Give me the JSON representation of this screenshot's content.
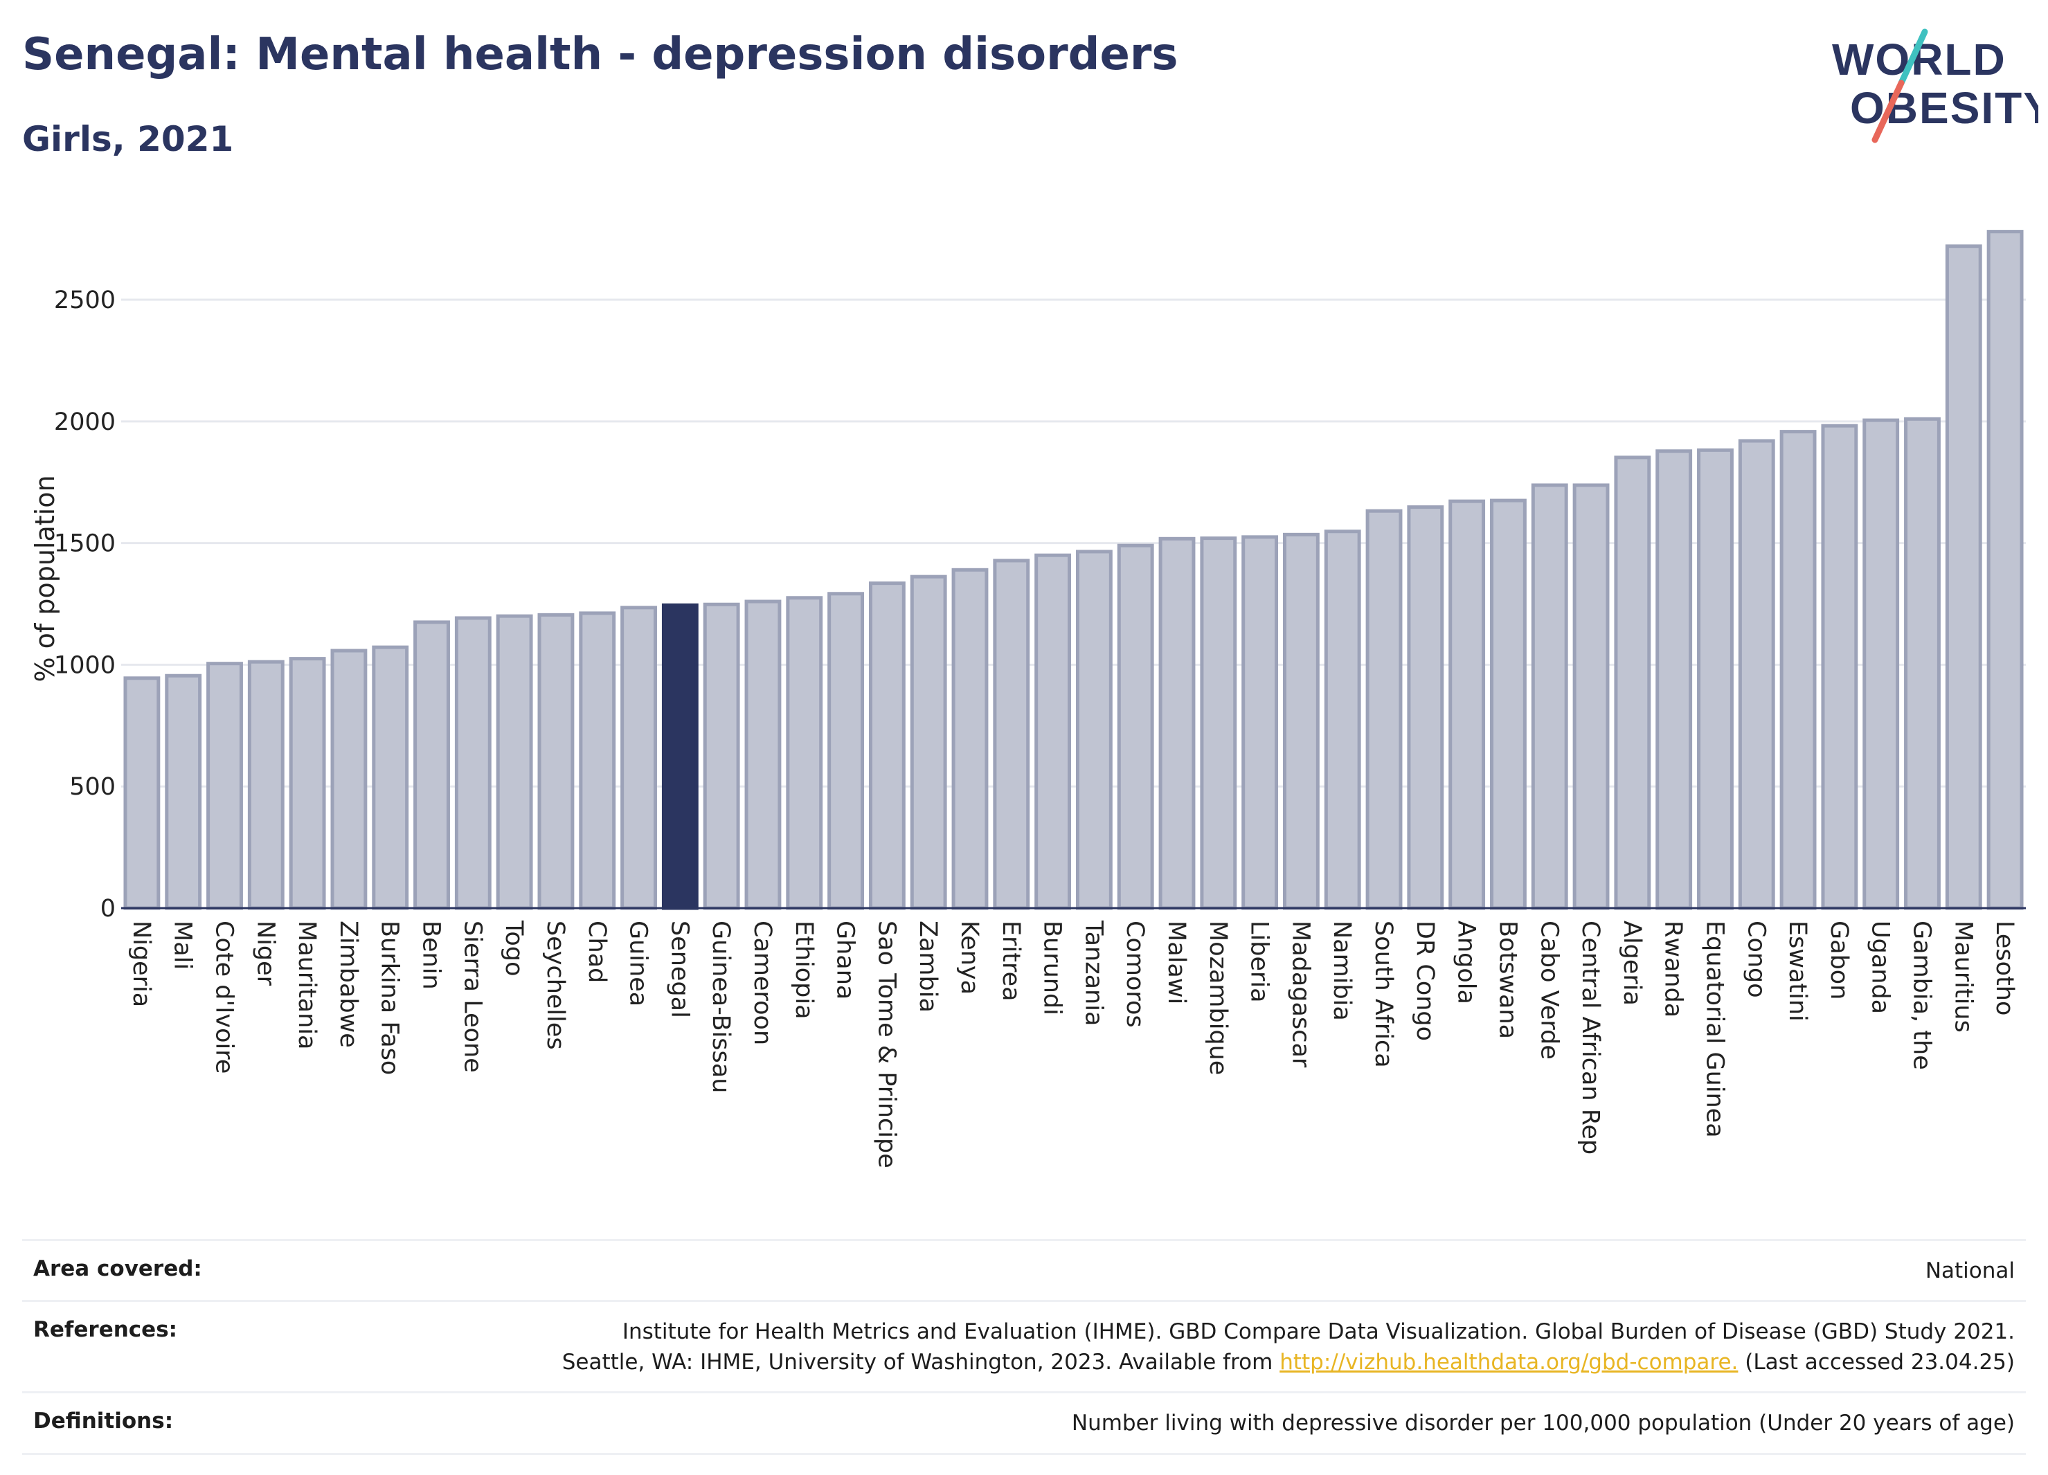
{
  "header": {
    "title": "Senegal: Mental health - depression disorders",
    "subtitle": "Girls, 2021"
  },
  "logo": {
    "line1": "WORLD",
    "line2": "OBESITY"
  },
  "chart_data": {
    "type": "bar",
    "ylabel": "% of population",
    "xlabel": "",
    "ylim": [
      0,
      2850
    ],
    "yticks": [
      0,
      500,
      1000,
      1500,
      2000,
      2500
    ],
    "grid": true,
    "highlight": "Senegal",
    "colors": {
      "bar": "#c0c4d2",
      "bar_edge": "#9ca2b8",
      "highlight": "#2b3560",
      "grid": "#e6e8ee",
      "axis": "#2b3560"
    },
    "categories": [
      "Nigeria",
      "Mali",
      "Cote d'Ivoire",
      "Niger",
      "Mauritania",
      "Zimbabwe",
      "Burkina Faso",
      "Benin",
      "Sierra Leone",
      "Togo",
      "Seychelles",
      "Chad",
      "Guinea",
      "Senegal",
      "Guinea-Bissau",
      "Cameroon",
      "Ethiopia",
      "Ghana",
      "Sao Tome & Principe",
      "Zambia",
      "Kenya",
      "Eritrea",
      "Burundi",
      "Tanzania",
      "Comoros",
      "Malawi",
      "Mozambique",
      "Liberia",
      "Madagascar",
      "Namibia",
      "South Africa",
      "DR Congo",
      "Angola",
      "Botswana",
      "Cabo Verde",
      "Central African Rep",
      "Algeria",
      "Rwanda",
      "Equatorial Guinea",
      "Congo",
      "Eswatini",
      "Gabon",
      "Uganda",
      "Gambia, the",
      "Mauritius",
      "Lesotho"
    ],
    "values": [
      945,
      955,
      1005,
      1012,
      1025,
      1058,
      1072,
      1175,
      1192,
      1200,
      1205,
      1212,
      1235,
      1245,
      1248,
      1260,
      1275,
      1292,
      1335,
      1362,
      1390,
      1428,
      1450,
      1465,
      1490,
      1518,
      1520,
      1525,
      1535,
      1548,
      1632,
      1648,
      1672,
      1675,
      1738,
      1738,
      1852,
      1878,
      1882,
      1920,
      1958,
      1982,
      2005,
      2010,
      2720,
      2780
    ]
  },
  "footer": {
    "area_label": "Area covered:",
    "area_value": "National",
    "references_label": "References:",
    "references_line1": "Institute for Health Metrics and Evaluation (IHME). GBD Compare Data Visualization. Global Burden of Disease (GBD) Study 2021.",
    "references_line2_pre": "Seattle, WA: IHME, University of Washington, 2023. Available from ",
    "references_link": "http://vizhub.healthdata.org/gbd-compare.",
    "references_line2_post": " (Last accessed 23.04.25)",
    "definitions_label": "Definitions:",
    "definitions_value": "Number living with depressive disorder per 100,000 population (Under 20 years of age)"
  }
}
